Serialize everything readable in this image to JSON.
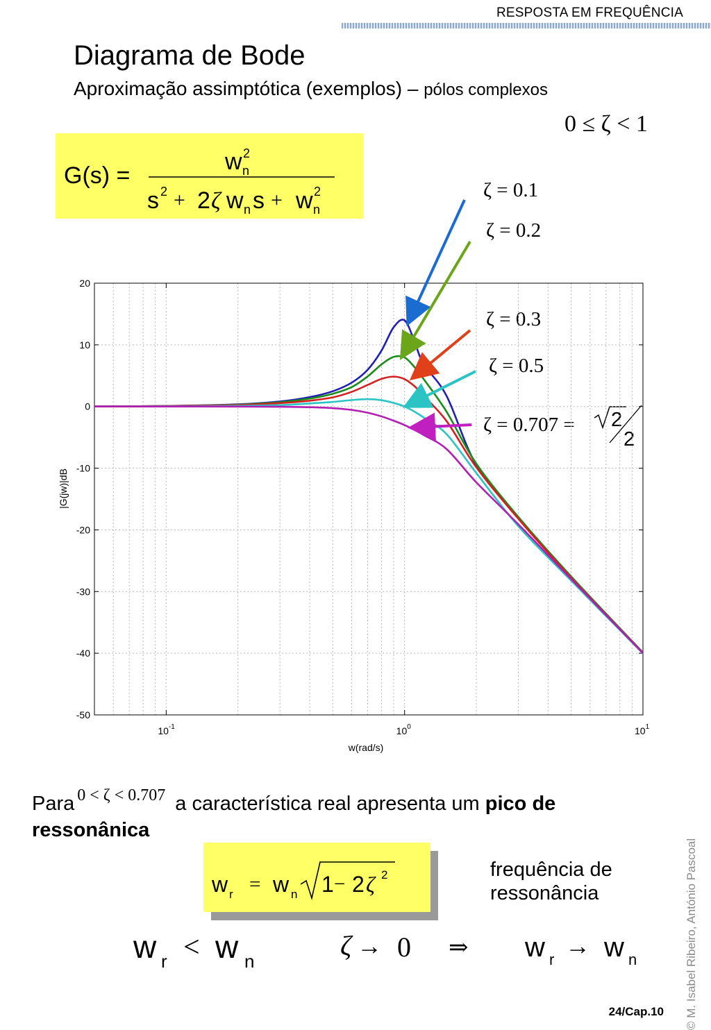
{
  "header": {
    "section": "RESPOSTA EM FREQUÊNCIA"
  },
  "slide": {
    "title": "Diagrama de Bode",
    "subtitle_main": "Aproximação assimptótica (exemplos) –",
    "subtitle_small": "pólos complexos",
    "zeta_range": "0 ≤ ζ < 1",
    "transfer_function": {
      "lhs": "G(s) ="
    },
    "zeta_labels": [
      "ζ = 0.1",
      "ζ = 0.2",
      "ζ = 0.3",
      "ζ = 0.5",
      "ζ = 0.707 ="
    ],
    "sqrt_num": "2",
    "sqrt_den": "2",
    "para_prefix": "Para",
    "para_cond": "0 < ζ < 0.707",
    "para_text": "a característica real apresenta um",
    "para_bold": "pico de ressonânica",
    "freq_line1": "frequência de",
    "freq_line2": "ressonância",
    "bottom_arrow": "⇒",
    "copyright": "© M. Isabel Ribeiro, António Pascoal",
    "page": "24/Cap.10"
  },
  "chart_data": {
    "type": "line",
    "title": "",
    "xlabel": "w(rad/s)",
    "ylabel": "|G(jw)|dB",
    "xscale": "log",
    "xlim": [
      0.05,
      10
    ],
    "ylim": [
      -50,
      20
    ],
    "yticks": [
      20,
      10,
      0,
      -10,
      -20,
      -30,
      -40,
      -50
    ],
    "xtick_labels": [
      {
        "base": "10",
        "exp": "-1",
        "value": 0.1
      },
      {
        "base": "10",
        "exp": "0",
        "value": 1
      },
      {
        "base": "10",
        "exp": "1",
        "value": 10
      }
    ],
    "grid": true,
    "series": [
      {
        "zeta": 0.1,
        "color": "#1f1fb4",
        "x": [
          0.05,
          0.1,
          0.2,
          0.3,
          0.4,
          0.5,
          0.6,
          0.7,
          0.8,
          0.9,
          1.0,
          1.1,
          1.2,
          1.5,
          2,
          3,
          5,
          10
        ],
        "y": [
          0.02,
          0.09,
          0.35,
          0.82,
          1.53,
          2.48,
          3.87,
          5.96,
          9.06,
          12.86,
          13.98,
          10.6,
          6.9,
          1.73,
          -9.52,
          -18.05,
          -27.64,
          -39.92
        ]
      },
      {
        "zeta": 0.2,
        "color": "#1a8c1a",
        "x": [
          0.05,
          0.1,
          0.2,
          0.3,
          0.4,
          0.5,
          0.6,
          0.7,
          0.8,
          0.9,
          1.0,
          1.1,
          1.2,
          1.5,
          2,
          3,
          5,
          10
        ],
        "y": [
          0.02,
          0.08,
          0.3,
          0.7,
          1.29,
          2.07,
          3.15,
          4.88,
          6.83,
          8.05,
          7.96,
          6.4,
          4.5,
          -0.84,
          -9.27,
          -17.9,
          -27.56,
          -39.9
        ]
      },
      {
        "zeta": 0.3,
        "color": "#d42020",
        "x": [
          0.05,
          0.1,
          0.2,
          0.3,
          0.4,
          0.5,
          0.6,
          0.7,
          0.8,
          0.9,
          1.0,
          1.1,
          1.2,
          1.5,
          2,
          3,
          5,
          10
        ],
        "y": [
          0.02,
          0.07,
          0.25,
          0.55,
          0.95,
          1.49,
          2.38,
          3.5,
          4.48,
          4.85,
          4.44,
          3.3,
          1.76,
          -2.36,
          -9.86,
          -18.2,
          -27.8,
          -39.98
        ]
      },
      {
        "zeta": 0.5,
        "color": "#2bc4c4",
        "x": [
          0.05,
          0.1,
          0.2,
          0.3,
          0.4,
          0.5,
          0.6,
          0.7,
          0.8,
          0.9,
          1.0,
          1.1,
          1.2,
          1.5,
          2,
          3,
          5,
          10
        ],
        "y": [
          0,
          0.03,
          0.11,
          0.23,
          0.5,
          0.75,
          1.05,
          1.2,
          1.03,
          0.58,
          0,
          -0.83,
          -1.76,
          -4.48,
          -10.79,
          -19.4,
          -28.24,
          -40.04
        ]
      },
      {
        "zeta": 0.707,
        "color": "#b21fb2",
        "x": [
          0.05,
          0.1,
          0.2,
          0.3,
          0.4,
          0.5,
          0.6,
          0.7,
          0.8,
          0.9,
          1.0,
          1.1,
          1.2,
          1.5,
          2,
          3,
          5,
          10
        ],
        "y": [
          0,
          0,
          -0.01,
          -0.04,
          -0.11,
          -0.26,
          -0.55,
          -1.0,
          -1.6,
          -2.3,
          -3.01,
          -3.8,
          -4.6,
          -6.9,
          -12.3,
          -19.1,
          -28.0,
          -40.0
        ]
      }
    ]
  }
}
